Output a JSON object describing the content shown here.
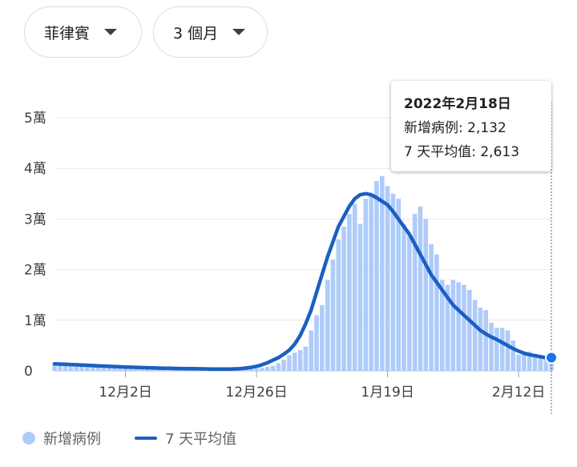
{
  "filters": {
    "country": "菲律賓",
    "range": "3 個月"
  },
  "tooltip": {
    "date": "2022年2月18日",
    "cases_label": "新增病例: 2,132",
    "avg_label": "7 天平均值: 2,613"
  },
  "legend": {
    "cases": "新增病例",
    "avg": "7 天平均值"
  },
  "colors": {
    "bars": "#aecbfa",
    "line": "#1a5fc3",
    "grid": "#e8eaed"
  },
  "chart_data": {
    "type": "bar",
    "ylim": [
      0,
      50000
    ],
    "yticks": [
      {
        "value": 0,
        "label": "0"
      },
      {
        "value": 10000,
        "label": "1萬"
      },
      {
        "value": 20000,
        "label": "2萬"
      },
      {
        "value": 30000,
        "label": "3萬"
      },
      {
        "value": 40000,
        "label": "4萬"
      },
      {
        "value": 50000,
        "label": "5萬"
      }
    ],
    "xticks": [
      {
        "day": 13,
        "label": "12月2日"
      },
      {
        "day": 37,
        "label": "12月26日"
      },
      {
        "day": 61,
        "label": "1月19日"
      },
      {
        "day": 85,
        "label": "2月12日"
      }
    ],
    "start_date": "2021-11-19",
    "end_date": "2022-02-18",
    "daily_cases": [
      1300,
      1250,
      1200,
      1150,
      1100,
      1080,
      1050,
      1000,
      950,
      900,
      870,
      830,
      800,
      760,
      720,
      690,
      650,
      620,
      580,
      550,
      520,
      500,
      480,
      460,
      450,
      430,
      420,
      400,
      390,
      380,
      370,
      360,
      350,
      350,
      360,
      400,
      450,
      500,
      600,
      800,
      1000,
      1500,
      2200,
      3100,
      3600,
      4100,
      4800,
      8000,
      11000,
      13000,
      18000,
      22000,
      26000,
      28500,
      31000,
      33000,
      29000,
      34000,
      35000,
      37500,
      38500,
      36500,
      35000,
      34000,
      29000,
      27000,
      31000,
      32500,
      30000,
      25000,
      23000,
      18000,
      17000,
      18000,
      17500,
      17000,
      16000,
      14000,
      12500,
      12000,
      9500,
      8500,
      8500,
      8000,
      6000,
      3200,
      3500,
      3800,
      3300,
      2800,
      2500,
      2132
    ],
    "series": [
      {
        "name": "7 天平均值",
        "values": [
          1400,
          1350,
          1300,
          1250,
          1200,
          1150,
          1100,
          1050,
          1000,
          950,
          900,
          850,
          800,
          760,
          720,
          690,
          650,
          620,
          590,
          560,
          530,
          500,
          480,
          460,
          440,
          420,
          410,
          390,
          380,
          370,
          360,
          360,
          370,
          400,
          450,
          550,
          700,
          900,
          1200,
          1600,
          2100,
          2600,
          3300,
          4100,
          5300,
          7000,
          9300,
          12000,
          15500,
          19000,
          22500,
          25500,
          28500,
          30500,
          32500,
          34000,
          34800,
          35000,
          34800,
          34200,
          33500,
          32800,
          31500,
          30000,
          28500,
          27000,
          25000,
          23000,
          21000,
          19000,
          17500,
          16000,
          14500,
          13000,
          12000,
          11000,
          10000,
          9000,
          8000,
          7300,
          6700,
          6200,
          5600,
          5000,
          4400,
          3900,
          3500,
          3200,
          3000,
          2800,
          2613
        ]
      }
    ]
  }
}
